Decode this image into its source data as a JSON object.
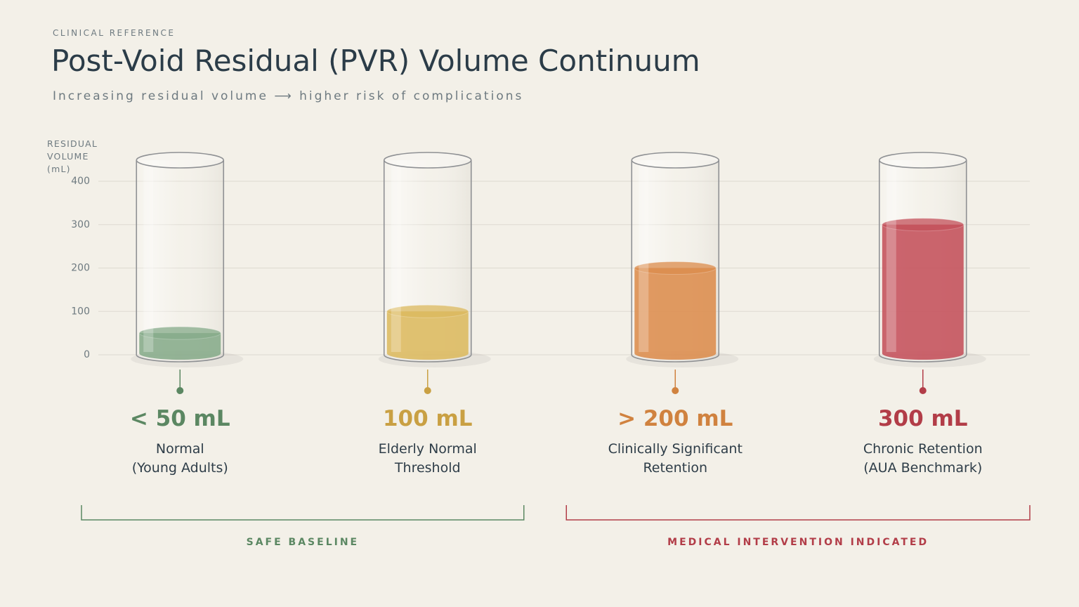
{
  "chart_data": {
    "type": "bar",
    "kicker": "CLINICAL REFERENCE",
    "title": "Post-Void Residual (PVR) Volume Continuum",
    "subtitle": "Increasing residual volume ⟶ higher risk of complications",
    "y_label": "RESIDUAL VOLUME (mL)",
    "categories": [
      "Normal\n(Young Adults)",
      "Elderly Normal\nThreshold",
      "Clinically Significant\nRetention",
      "Chronic Retention\n(AUA Benchmark)"
    ],
    "values": [
      50,
      100,
      200,
      300
    ],
    "value_labels": [
      "< 50 mL",
      "100 mL",
      "> 200 mL",
      "300 mL"
    ],
    "colors": [
      "#86ab8a",
      "#dcb95e",
      "#dc8c4c",
      "#c4505a"
    ],
    "label_colors": [
      "#5b8762",
      "#c9a043",
      "#d0823f",
      "#b23d48"
    ],
    "ylim": [
      0,
      400
    ],
    "yticks": [
      0,
      100,
      200,
      300,
      400
    ],
    "grid": true,
    "groups": [
      {
        "label": "SAFE BASELINE",
        "color": "#5b8762",
        "categories": [
          "Normal\n(Young Adults)",
          "Elderly Normal\nThreshold"
        ]
      },
      {
        "label": "MEDICAL INTERVENTION INDICATED",
        "color": "#b23d48",
        "categories": [
          "Clinically Significant\nRetention",
          "Chronic Retention\n(AUA Benchmark)"
        ]
      }
    ]
  }
}
